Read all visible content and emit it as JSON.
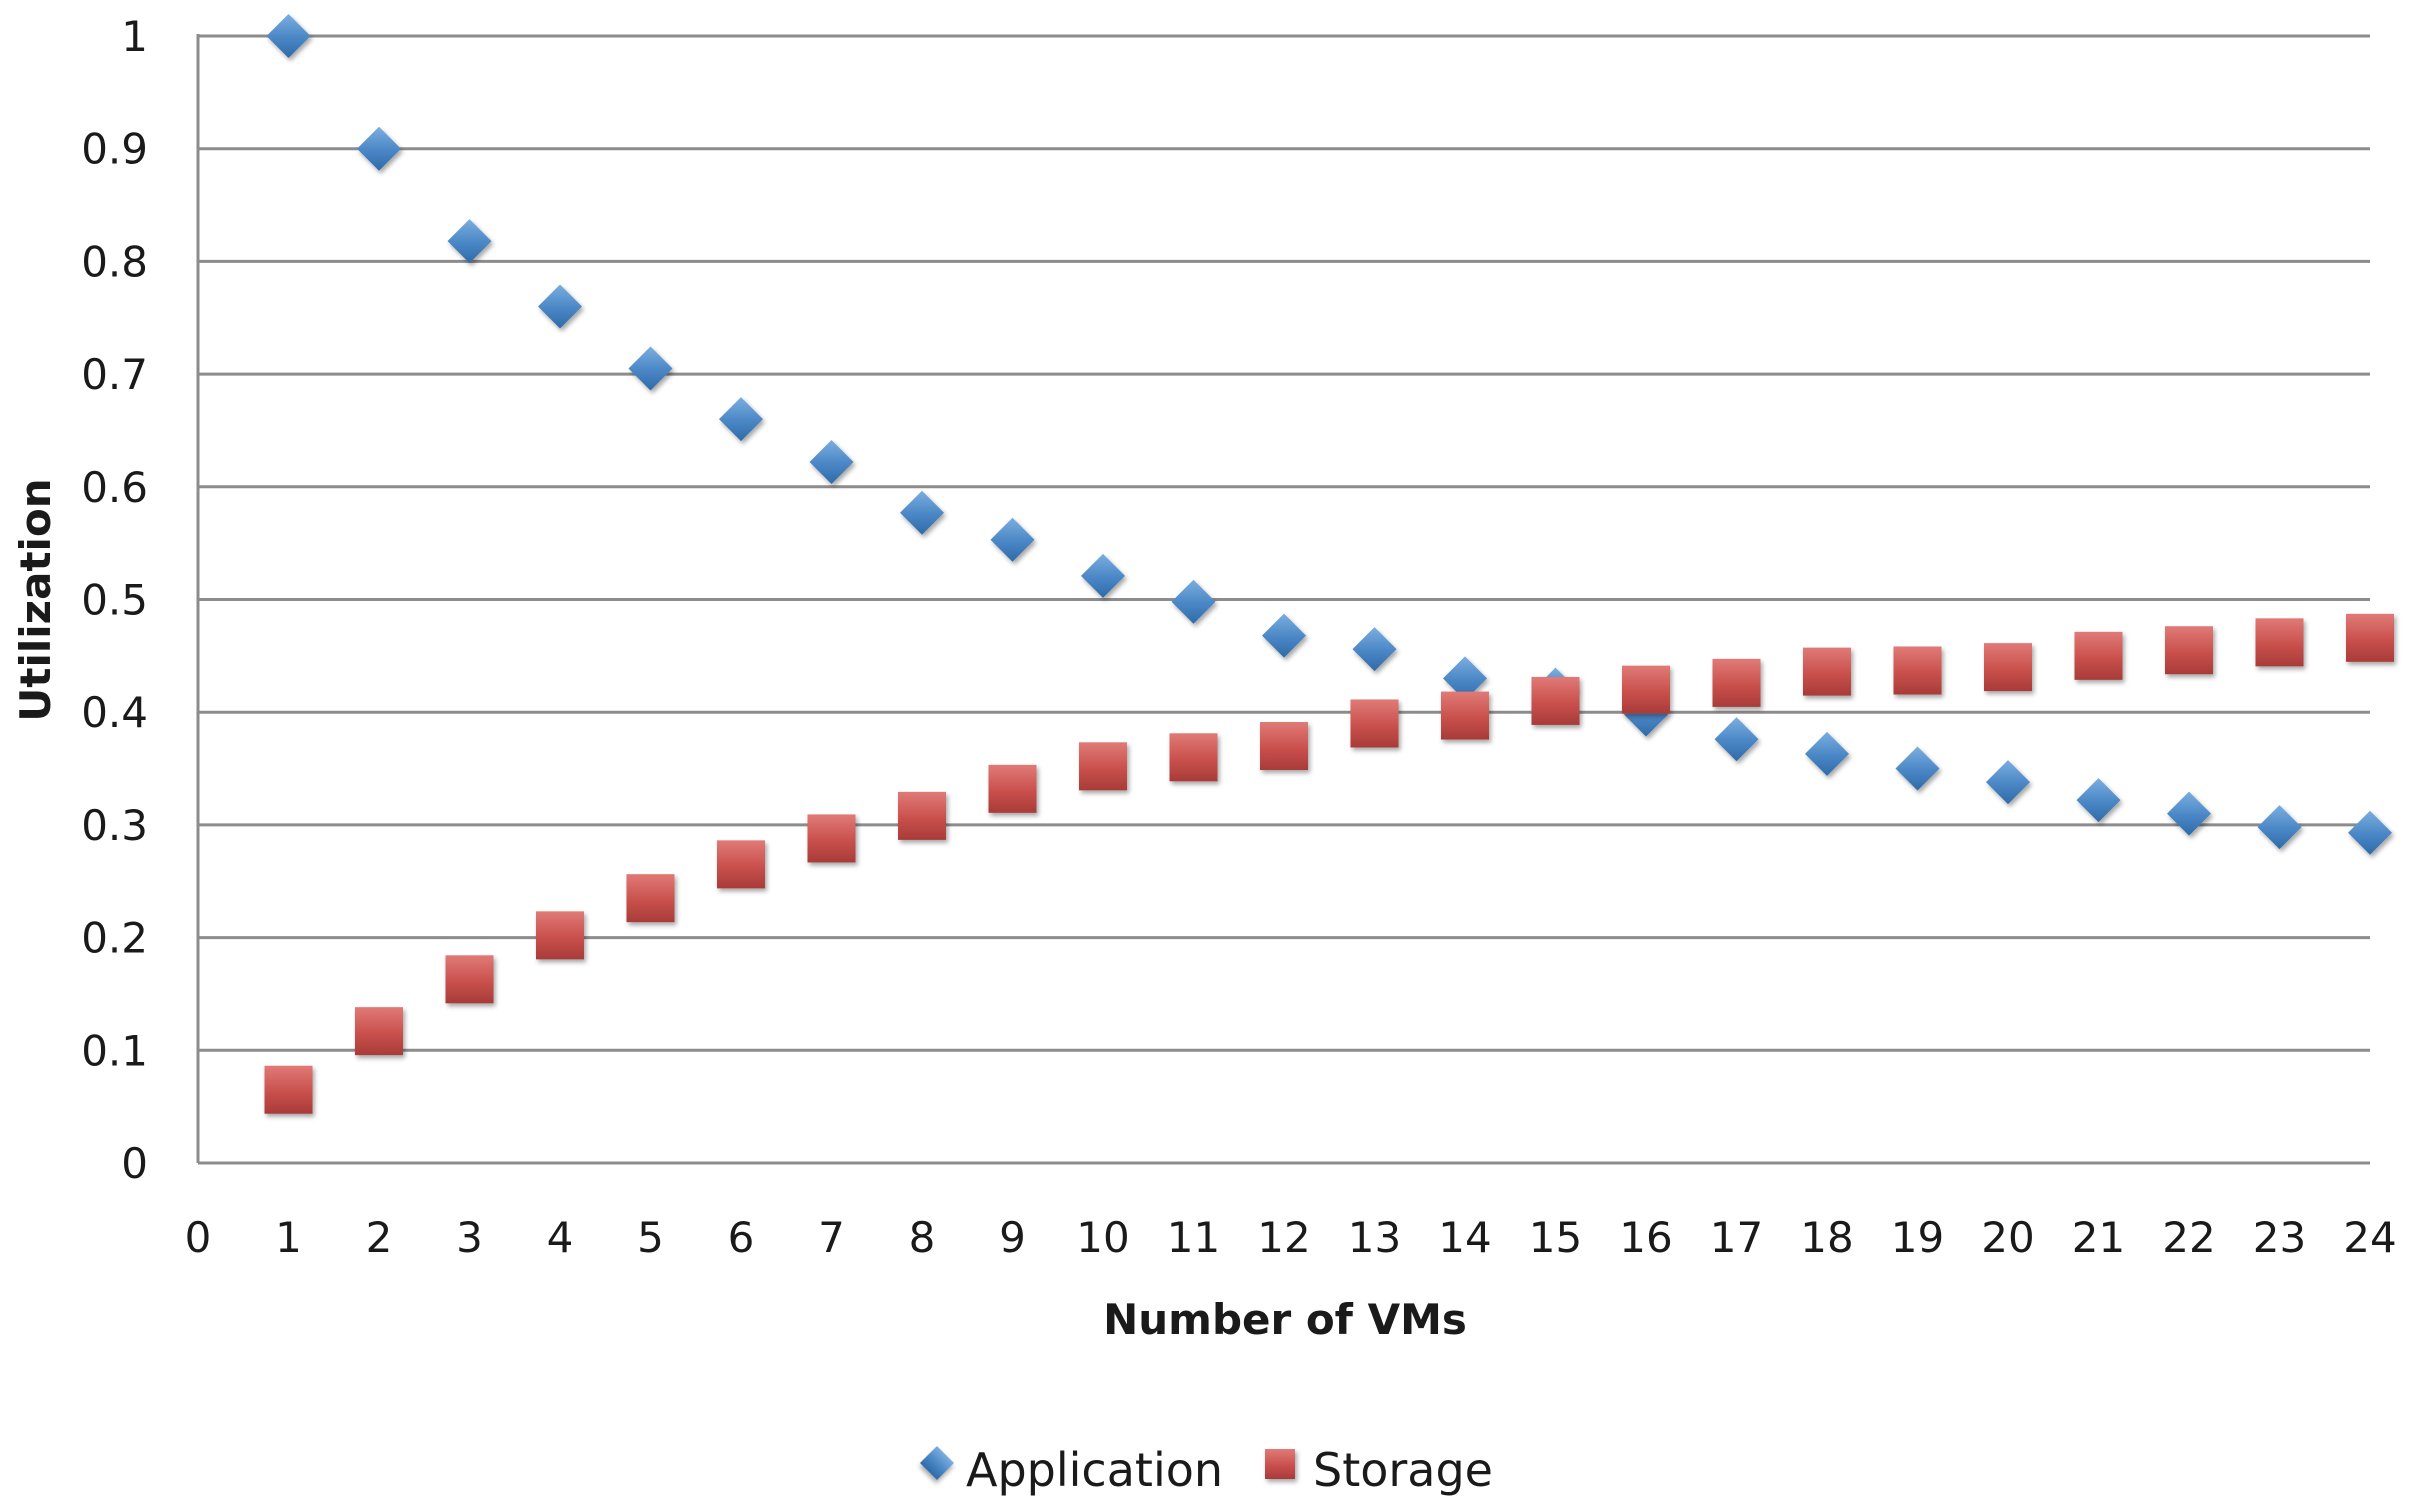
{
  "chart_data": {
    "type": "scatter",
    "title": "",
    "xlabel": "Number of VMs",
    "ylabel": "Utilization",
    "xlim": [
      0,
      24
    ],
    "ylim": [
      0,
      1
    ],
    "x_ticks": [
      "0",
      "1",
      "2",
      "3",
      "4",
      "5",
      "6",
      "7",
      "8",
      "9",
      "10",
      "11",
      "12",
      "13",
      "14",
      "15",
      "16",
      "17",
      "18",
      "19",
      "20",
      "21",
      "22",
      "23",
      "24"
    ],
    "y_ticks": [
      "0",
      "0.1",
      "0.2",
      "0.3",
      "0.4",
      "0.5",
      "0.6",
      "0.7",
      "0.8",
      "0.9",
      "1"
    ],
    "grid": true,
    "legend_position": "bottom",
    "series": [
      {
        "name": "Application",
        "marker": "diamond",
        "color": "#4a86c5",
        "x": [
          1,
          2,
          3,
          4,
          5,
          6,
          7,
          8,
          9,
          10,
          11,
          12,
          13,
          14,
          15,
          16,
          17,
          18,
          19,
          20,
          21,
          22,
          23,
          24
        ],
        "y": [
          1.0,
          0.9,
          0.818,
          0.76,
          0.705,
          0.66,
          0.622,
          0.577,
          0.553,
          0.521,
          0.498,
          0.468,
          0.456,
          0.43,
          0.42,
          0.398,
          0.376,
          0.363,
          0.35,
          0.338,
          0.322,
          0.31,
          0.298,
          0.293
        ]
      },
      {
        "name": "Storage",
        "marker": "square",
        "color": "#c0504d",
        "x": [
          1,
          2,
          3,
          4,
          5,
          6,
          7,
          8,
          9,
          10,
          11,
          12,
          13,
          14,
          15,
          16,
          17,
          18,
          19,
          20,
          21,
          22,
          23,
          24
        ],
        "y": [
          0.065,
          0.117,
          0.163,
          0.202,
          0.235,
          0.265,
          0.288,
          0.308,
          0.332,
          0.352,
          0.36,
          0.37,
          0.39,
          0.397,
          0.41,
          0.42,
          0.426,
          0.436,
          0.437,
          0.44,
          0.45,
          0.455,
          0.462,
          0.466
        ]
      }
    ]
  }
}
